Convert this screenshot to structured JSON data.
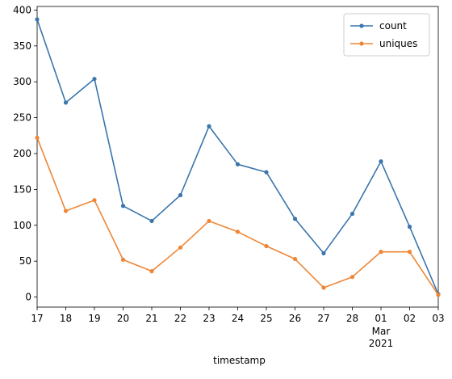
{
  "chart_data": {
    "type": "line",
    "xlabel": "timestamp",
    "ylabel": "",
    "title": "",
    "categories": [
      "17",
      "18",
      "19",
      "20",
      "21",
      "22",
      "23",
      "24",
      "25",
      "26",
      "27",
      "28",
      "01",
      "02",
      "03"
    ],
    "month_label": "Mar",
    "year_label": "2021",
    "ylim": [
      -14,
      405
    ],
    "yticks": [
      0,
      50,
      100,
      150,
      200,
      250,
      300,
      350,
      400
    ],
    "grid": false,
    "legend_position": "top-right",
    "series": [
      {
        "name": "count",
        "color": "#3a75ac",
        "values": [
          387,
          271,
          304,
          127,
          106,
          142,
          238,
          185,
          174,
          109,
          61,
          116,
          189,
          98,
          4
        ]
      },
      {
        "name": "uniques",
        "color": "#ef8636",
        "values": [
          222,
          120,
          135,
          52,
          36,
          69,
          106,
          91,
          71,
          53,
          13,
          28,
          63,
          63,
          3
        ]
      }
    ]
  }
}
